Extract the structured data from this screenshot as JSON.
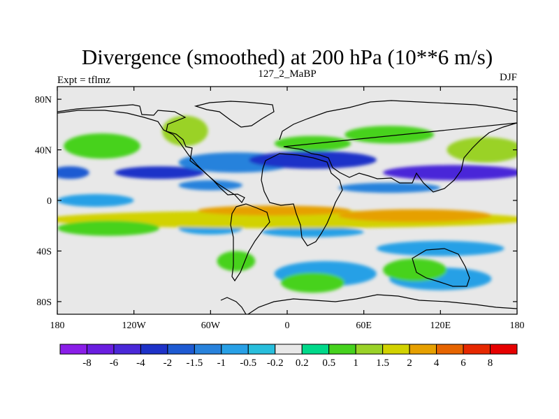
{
  "chart_data": {
    "type": "heatmap",
    "title": "Divergence (smoothed) at 200 hPa (10**6 m/s)",
    "subtitle_left": "Expt = tflmz",
    "subtitle_center": "127_2_MaBP",
    "subtitle_right": "DJF",
    "xlim": [
      -180,
      180
    ],
    "ylim": [
      -90,
      90
    ],
    "x_ticks": [
      {
        "value": -180,
        "label": "180"
      },
      {
        "value": -120,
        "label": "120W"
      },
      {
        "value": -60,
        "label": "60W"
      },
      {
        "value": 0,
        "label": "0"
      },
      {
        "value": 60,
        "label": "60E"
      },
      {
        "value": 120,
        "label": "120E"
      },
      {
        "value": 180,
        "label": "180"
      }
    ],
    "y_ticks": [
      {
        "value": 80,
        "label": "80N"
      },
      {
        "value": 40,
        "label": "40N"
      },
      {
        "value": 0,
        "label": "0"
      },
      {
        "value": -40,
        "label": "40S"
      },
      {
        "value": -80,
        "label": "80S"
      }
    ],
    "colorbar": {
      "labels": [
        "-8",
        "-6",
        "-4",
        "-2",
        "-1.5",
        "-1",
        "-0.5",
        "-0.2",
        "0.2",
        "0.5",
        "1",
        "1.5",
        "2",
        "4",
        "6",
        "8"
      ],
      "colors": [
        "#8a1ee8",
        "#6a1ee0",
        "#4a28d8",
        "#1e32c8",
        "#1e5ad2",
        "#2882dc",
        "#28a0e6",
        "#28bedc",
        "#e8e8e8",
        "#00d98a",
        "#46d21e",
        "#9ad228",
        "#d2d200",
        "#e6a000",
        "#e66400",
        "#e62800",
        "#e60000"
      ]
    },
    "field_blobs": [
      {
        "lon": -100,
        "lat": 22,
        "rx": 35,
        "ry": 5,
        "level": 3
      },
      {
        "lon": -170,
        "lat": 22,
        "rx": 15,
        "ry": 5,
        "level": 4
      },
      {
        "lon": -40,
        "lat": 30,
        "rx": 45,
        "ry": 8,
        "level": 5
      },
      {
        "lon": 20,
        "lat": 32,
        "rx": 50,
        "ry": 7,
        "level": 3
      },
      {
        "lon": 130,
        "lat": 22,
        "rx": 55,
        "ry": 6,
        "level": 2
      },
      {
        "lon": -60,
        "lat": 12,
        "rx": 25,
        "ry": 4,
        "level": 5
      },
      {
        "lon": 80,
        "lat": 10,
        "rx": 40,
        "ry": 4,
        "level": 5
      },
      {
        "lon": -150,
        "lat": 0,
        "rx": 30,
        "ry": 5,
        "level": 6
      },
      {
        "lon": -60,
        "lat": -22,
        "rx": 25,
        "ry": 5,
        "level": 6
      },
      {
        "lon": 20,
        "lat": -25,
        "rx": 40,
        "ry": 4,
        "level": 6
      },
      {
        "lon": 120,
        "lat": -38,
        "rx": 50,
        "ry": 6,
        "level": 6
      },
      {
        "lon": 30,
        "lat": -58,
        "rx": 40,
        "ry": 10,
        "level": 6
      },
      {
        "lon": 120,
        "lat": -62,
        "rx": 40,
        "ry": 9,
        "level": 6
      },
      {
        "lon": -145,
        "lat": 43,
        "rx": 30,
        "ry": 10,
        "level": 10
      },
      {
        "lon": -80,
        "lat": 55,
        "rx": 18,
        "ry": 12,
        "level": 11
      },
      {
        "lon": 20,
        "lat": 45,
        "rx": 30,
        "ry": 6,
        "level": 10
      },
      {
        "lon": 80,
        "lat": 52,
        "rx": 35,
        "ry": 7,
        "level": 10
      },
      {
        "lon": 155,
        "lat": 40,
        "rx": 30,
        "ry": 10,
        "level": 11
      },
      {
        "lon": 0,
        "lat": -15,
        "rx": 190,
        "ry": 7,
        "level": 12
      },
      {
        "lon": -10,
        "lat": -8,
        "rx": 60,
        "ry": 4,
        "level": 13
      },
      {
        "lon": 100,
        "lat": -12,
        "rx": 60,
        "ry": 5,
        "level": 13
      },
      {
        "lon": -140,
        "lat": -22,
        "rx": 40,
        "ry": 6,
        "level": 10
      },
      {
        "lon": -40,
        "lat": -48,
        "rx": 15,
        "ry": 8,
        "level": 10
      },
      {
        "lon": 100,
        "lat": -55,
        "rx": 25,
        "ry": 9,
        "level": 10
      },
      {
        "lon": 20,
        "lat": -65,
        "rx": 25,
        "ry": 8,
        "level": 10
      }
    ]
  }
}
